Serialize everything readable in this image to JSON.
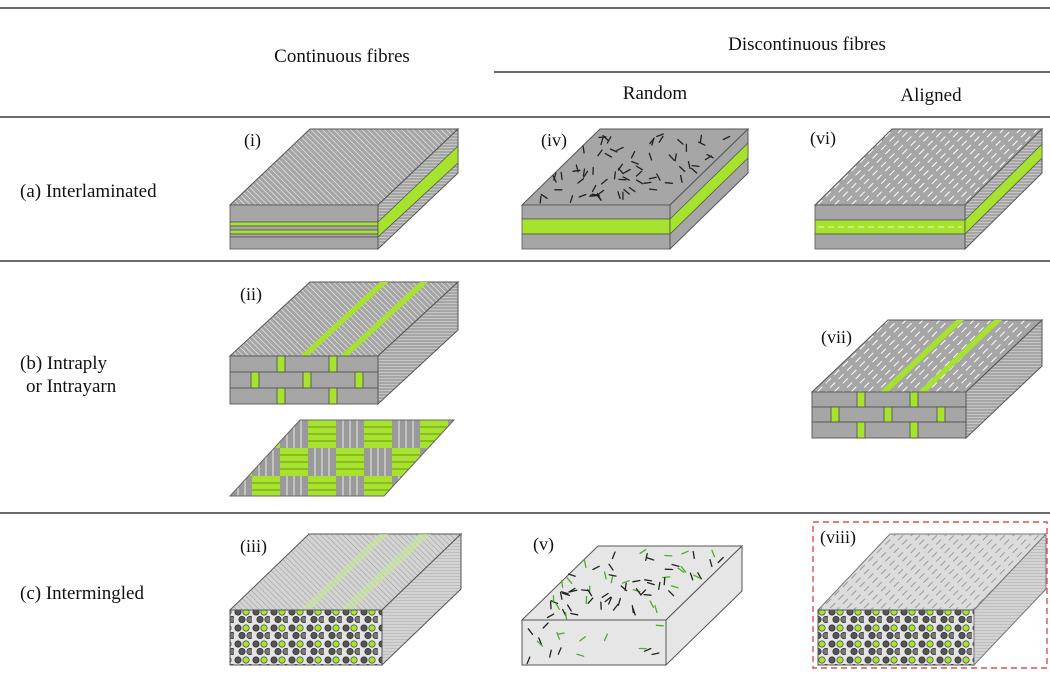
{
  "columns": {
    "continuous": "Continuous fibres",
    "discontinuous": "Discontinuous fibres",
    "random": "Random",
    "aligned": "Aligned"
  },
  "rows": [
    {
      "label_lines": [
        "(a) Interlaminated"
      ]
    },
    {
      "label_lines": [
        "(b) Intraply",
        "or Intrayarn"
      ]
    },
    {
      "label_lines": [
        "(c) Intermingled"
      ]
    }
  ],
  "cells": {
    "i": "(i)",
    "ii": "(ii)",
    "iii": "(iii)",
    "iv": "(iv)",
    "v": "(v)",
    "vi": "(vi)",
    "vii": "(vii)",
    "viii": "(viii)"
  },
  "colors": {
    "fibre_grey": "#a6a6a6",
    "fibre_light": "#d9d9d9",
    "hybrid_green": "#a6e22e",
    "dark_fibre": "#222222",
    "highlight_dash": "#e05050"
  }
}
